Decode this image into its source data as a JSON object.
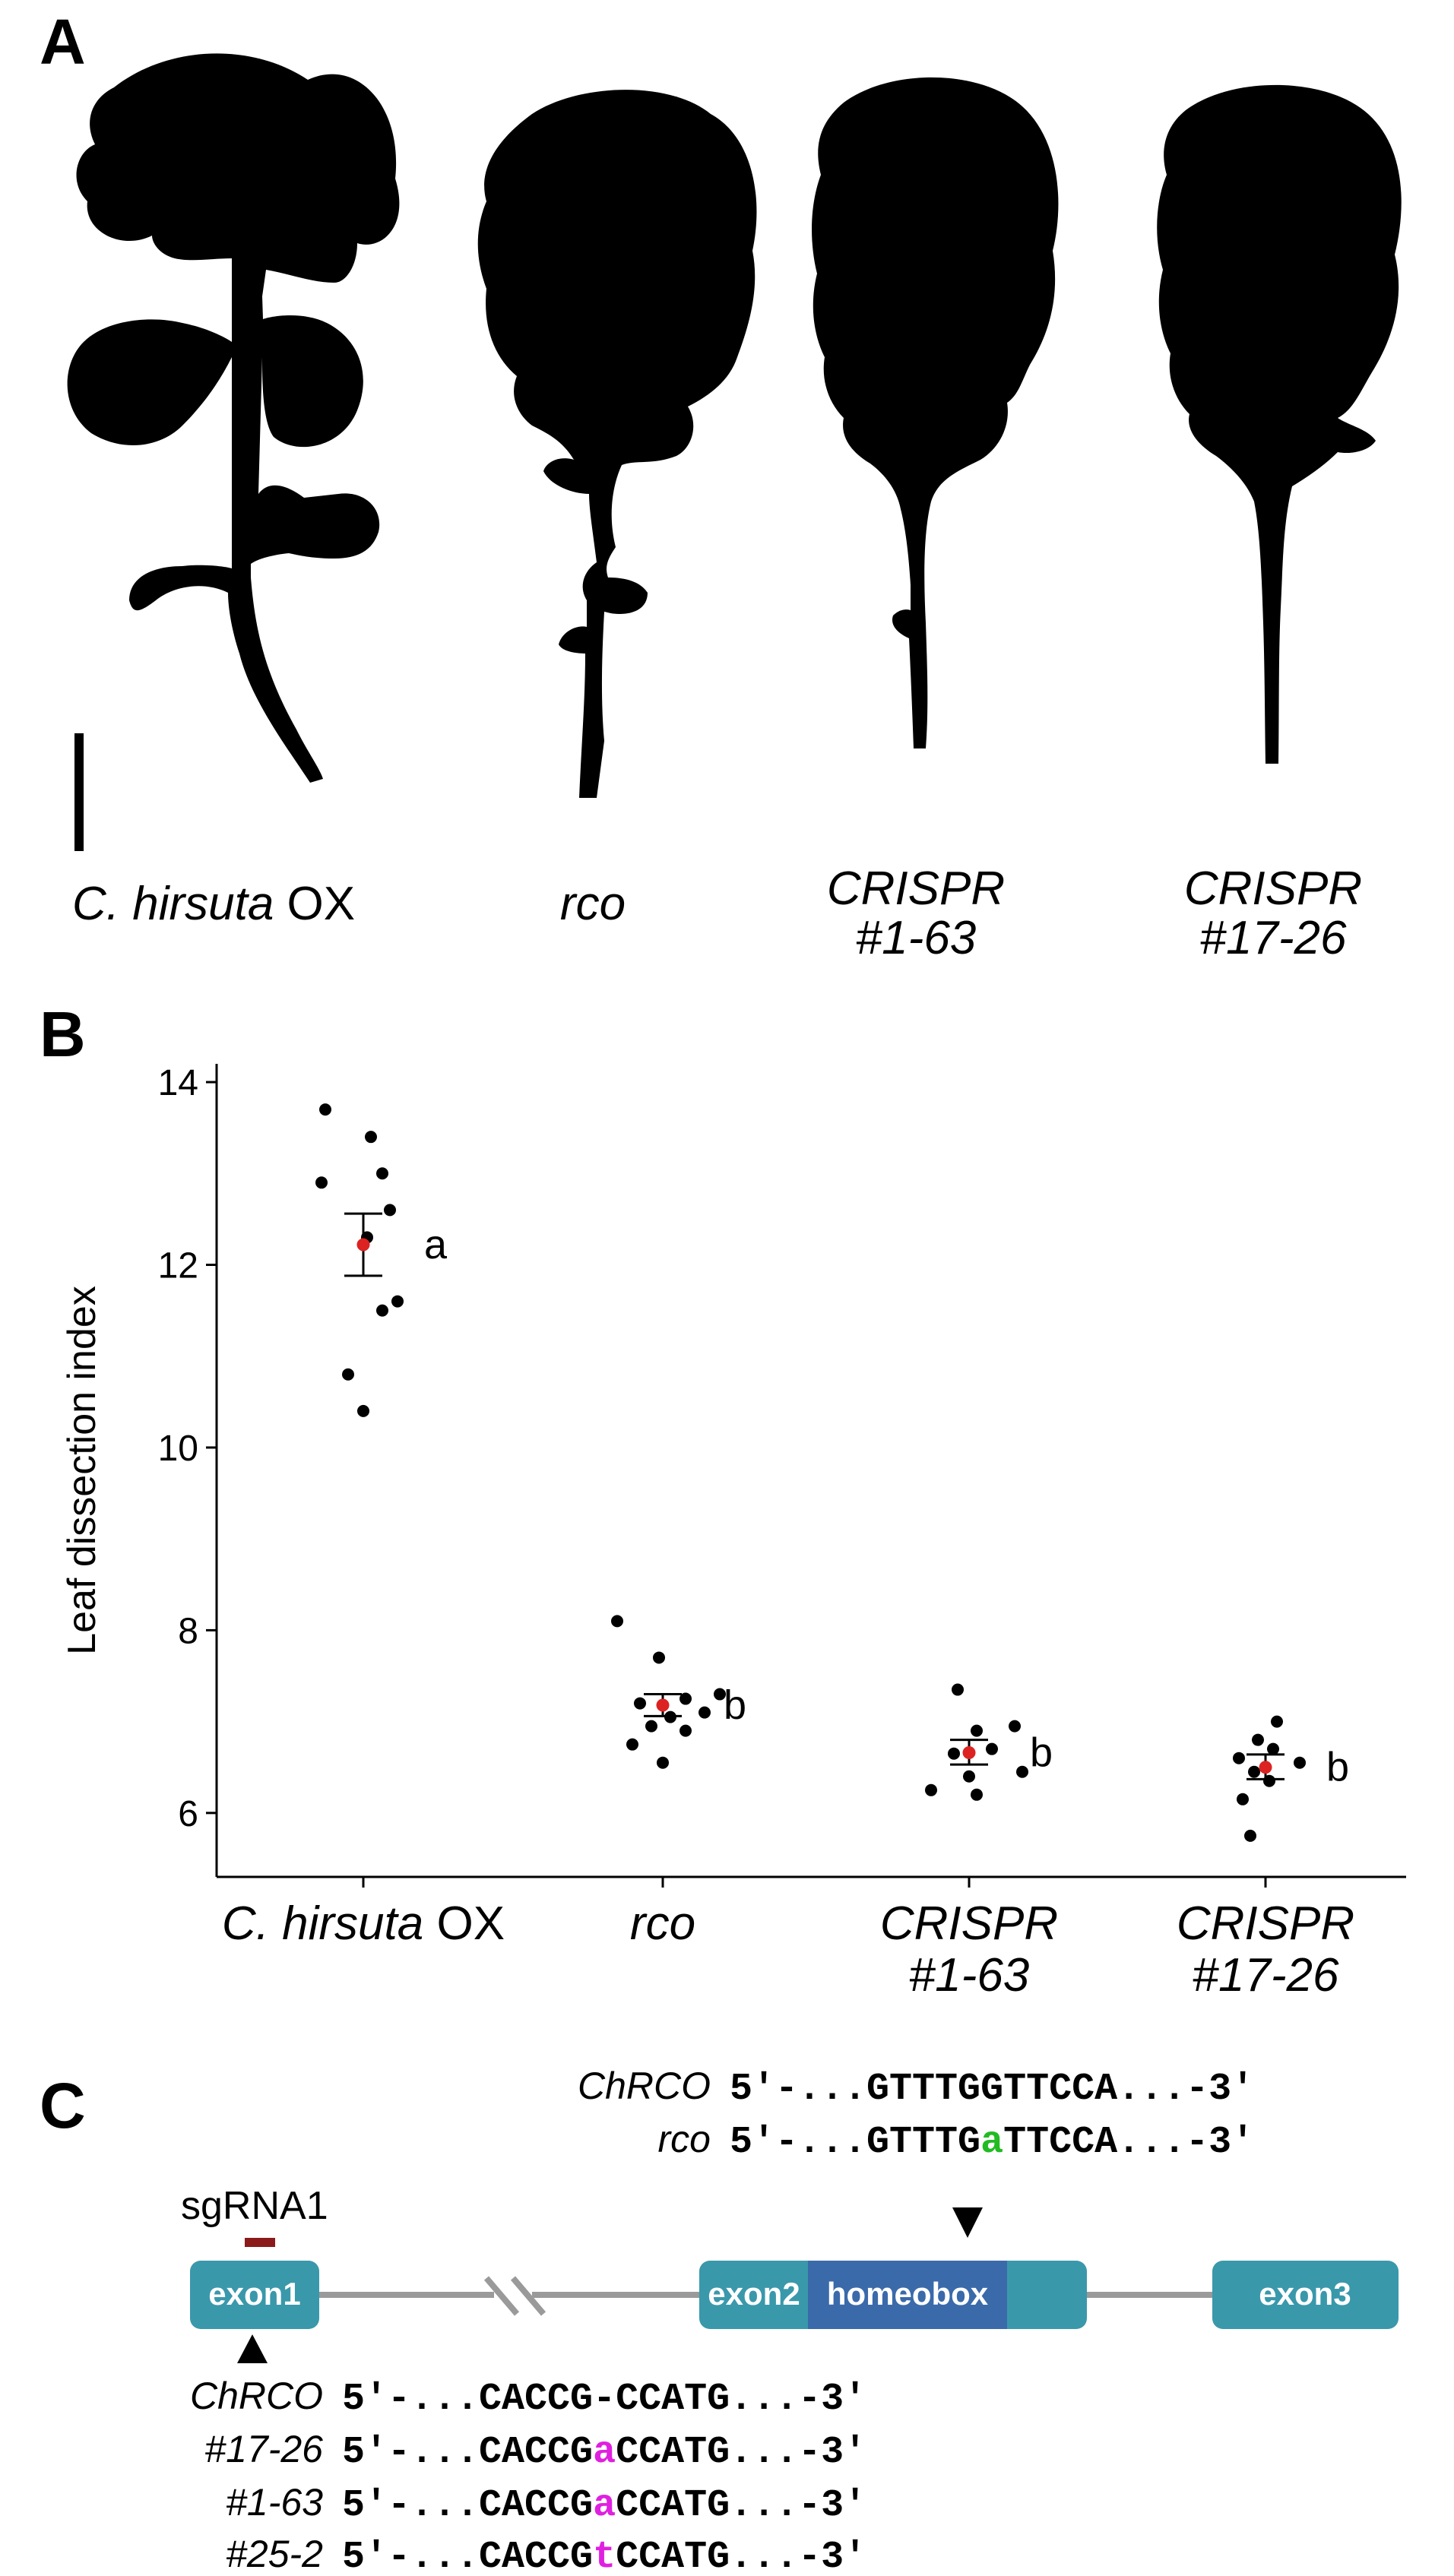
{
  "panels": {
    "a": {
      "label": "A",
      "specimens": [
        {
          "id": "ox",
          "name_italic": "C. hirsuta",
          "name_regular": " OX",
          "line2": ""
        },
        {
          "id": "rco",
          "name_italic": "rco",
          "name_regular": "",
          "line2": ""
        },
        {
          "id": "c163",
          "name_italic": "CRISPR",
          "name_regular": "",
          "line2": "#1-63"
        },
        {
          "id": "c1726",
          "name_italic": "CRISPR",
          "name_regular": "",
          "line2": "#17-26"
        }
      ]
    },
    "b": {
      "label": "B"
    },
    "c": {
      "label": "C",
      "sgrna_label": "sgRNA1",
      "exon1": "exon1",
      "exon2": "exon2",
      "homeobox": "homeobox",
      "exon3": "exon3",
      "top_seqs": [
        {
          "name": "ChRCO",
          "pre": "5'-...GTTTG",
          "mut": "G",
          "post": "TTCCA...-3'",
          "mut_color": "#000000"
        },
        {
          "name": "rco",
          "pre": "5'-...GTTTG",
          "mut": "a",
          "post": "TTCCA...-3'",
          "mut_color": "#22bb22"
        }
      ],
      "bottom_seqs": [
        {
          "name": "ChRCO",
          "pre": "5'-...CACCG",
          "mut": "-",
          "post": "CCATG...-3'",
          "mut_color": "#000000"
        },
        {
          "name": "#17-26",
          "pre": "5'-...CACCG",
          "mut": "a",
          "post": "CCATG...-3'",
          "mut_color": "#e020e0"
        },
        {
          "name": "#1-63",
          "pre": "5'-...CACCG",
          "mut": "a",
          "post": "CCATG...-3'",
          "mut_color": "#e020e0"
        },
        {
          "name": "#25-2",
          "pre": "5'-...CACCG",
          "mut": "t",
          "post": "CCATG...-3'",
          "mut_color": "#e020e0"
        }
      ],
      "colors": {
        "exon": "#3a98ab",
        "homeobox": "#3a6aaa",
        "sgrna": "#8b1a1a",
        "line": "#9a9a9a"
      }
    }
  },
  "chart_data": {
    "type": "scatter",
    "ylabel": "Leaf dissection index",
    "ylim": [
      5.3,
      14.2
    ],
    "yticks": [
      6,
      8,
      10,
      12,
      14
    ],
    "categories": [
      {
        "italic": "C. hirsuta",
        "regular": " OX",
        "line2": ""
      },
      {
        "italic": "rco",
        "regular": "",
        "line2": ""
      },
      {
        "italic": "CRISPR",
        "regular": "",
        "line2": "#1-63"
      },
      {
        "italic": "CRISPR",
        "regular": "",
        "line2": "#17-26"
      }
    ],
    "groups": [
      {
        "points": [
          13.7,
          13.4,
          12.9,
          13.0,
          12.6,
          12.3,
          11.6,
          11.5,
          10.8,
          10.4
        ],
        "mean": 12.22,
        "err_low": 11.88,
        "err_high": 12.56,
        "letter": "a"
      },
      {
        "points": [
          8.1,
          7.7,
          7.3,
          7.25,
          7.2,
          7.1,
          7.05,
          6.95,
          6.9,
          6.75,
          6.55
        ],
        "mean": 7.18,
        "err_low": 7.06,
        "err_high": 7.3,
        "letter": "b"
      },
      {
        "points": [
          7.35,
          6.95,
          6.9,
          6.7,
          6.65,
          6.45,
          6.4,
          6.25,
          6.2
        ],
        "mean": 6.66,
        "err_low": 6.53,
        "err_high": 6.8,
        "letter": "b"
      },
      {
        "points": [
          7.0,
          6.8,
          6.7,
          6.6,
          6.55,
          6.45,
          6.35,
          6.15,
          5.75
        ],
        "mean": 6.5,
        "err_low": 6.37,
        "err_high": 6.64,
        "letter": "b"
      }
    ],
    "point_color": "#000000",
    "mean_color": "#dd2222",
    "grid": false
  }
}
